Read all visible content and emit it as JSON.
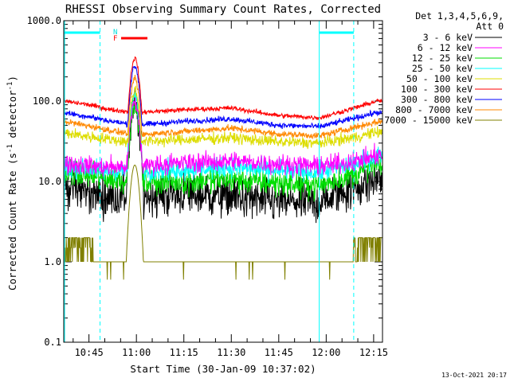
{
  "chart_data": {
    "type": "line",
    "title": "RHESSI Observing Summary Count Rates, Corrected",
    "xlabel": "Start Time (30-Jan-09 10:37:02)",
    "ylabel_main": "Corrected Count Rate (s",
    "ylabel_sup1": "-1",
    "ylabel_mid": " detector",
    "ylabel_sup2": "-1",
    "ylabel_end": ")",
    "yscale": "log",
    "ylim": [
      0.1,
      1000
    ],
    "xlim_minutes": [
      37.03,
      137.8
    ],
    "x_ticks": [
      "10:45",
      "11:00",
      "11:15",
      "11:30",
      "11:45",
      "12:00",
      "12:15"
    ],
    "y_ticks": [
      "1000.0",
      "100.0",
      "10.0",
      "1.0",
      "0.1"
    ],
    "legend": {
      "header": [
        "Det 1,3,4,5,6,9,",
        "Att 0"
      ],
      "entries": [
        {
          "label": "3 - 6 keV",
          "color": "#000000"
        },
        {
          "label": "6 - 12 keV",
          "color": "#ff00ff"
        },
        {
          "label": "12 - 25 keV",
          "color": "#00dd00"
        },
        {
          "label": "25 - 50 keV",
          "color": "#00ffff"
        },
        {
          "label": "50 - 100 keV",
          "color": "#dddd00"
        },
        {
          "label": "100 - 300 keV",
          "color": "#ff0000"
        },
        {
          "label": "300 - 800 keV",
          "color": "#0000ff"
        },
        {
          "label": "800 - 7000 keV",
          "color": "#ff8800"
        },
        {
          "label": "7000 - 15000 keV",
          "color": "#808000"
        }
      ]
    },
    "flags": {
      "N": "N",
      "F": "F"
    },
    "series": [
      {
        "name": "3 - 6 keV",
        "color": "#000000",
        "base": 6.5,
        "peak": 80,
        "noise": 0.13,
        "trend": [
          [
            37,
            9
          ],
          [
            42,
            8
          ],
          [
            50,
            6.5
          ],
          [
            58,
            6.5
          ],
          [
            75,
            7
          ],
          [
            90,
            6.5
          ],
          [
            105,
            5.5
          ],
          [
            118,
            5.5
          ],
          [
            125,
            7.5
          ],
          [
            132,
            9
          ],
          [
            136,
            11
          ]
        ]
      },
      {
        "name": "6 - 12 keV",
        "color": "#ff00ff",
        "base": 17,
        "peak": 95,
        "noise": 0.06,
        "trend": [
          [
            37,
            17
          ],
          [
            50,
            15
          ],
          [
            58,
            15.5
          ],
          [
            75,
            17
          ],
          [
            90,
            18
          ],
          [
            105,
            16.5
          ],
          [
            118,
            15.5
          ],
          [
            130,
            18
          ],
          [
            136,
            21
          ]
        ]
      },
      {
        "name": "12 - 25 keV",
        "color": "#00dd00",
        "base": 11,
        "peak": 90,
        "noise": 0.08,
        "trend": [
          [
            37,
            13
          ],
          [
            50,
            11
          ],
          [
            58,
            10
          ],
          [
            75,
            10
          ],
          [
            90,
            10.5
          ],
          [
            105,
            9.5
          ],
          [
            118,
            9
          ],
          [
            128,
            12
          ],
          [
            136,
            16
          ]
        ]
      },
      {
        "name": "25 - 50 keV",
        "color": "#00ffff",
        "base": 14,
        "peak": 110,
        "noise": 0.06,
        "trend": [
          [
            37,
            15
          ],
          [
            50,
            13.5
          ],
          [
            58,
            13.5
          ],
          [
            75,
            14
          ],
          [
            90,
            15
          ],
          [
            105,
            13.5
          ],
          [
            118,
            13
          ],
          [
            130,
            17
          ],
          [
            136,
            21
          ]
        ]
      },
      {
        "name": "50 - 100 keV",
        "color": "#dddd00",
        "base": 36,
        "peak": 135,
        "noise": 0.035,
        "trend": [
          [
            37,
            40
          ],
          [
            50,
            34
          ],
          [
            58,
            31
          ],
          [
            75,
            33
          ],
          [
            90,
            35
          ],
          [
            105,
            31
          ],
          [
            118,
            30
          ],
          [
            130,
            36
          ],
          [
            136,
            41
          ]
        ]
      },
      {
        "name": "100 - 300 keV",
        "color": "#ff0000",
        "base": 90,
        "peak": 340,
        "noise": 0.015,
        "trend": [
          [
            37,
            100
          ],
          [
            45,
            90
          ],
          [
            52,
            78
          ],
          [
            60,
            72
          ],
          [
            75,
            78
          ],
          [
            90,
            82
          ],
          [
            105,
            66
          ],
          [
            118,
            62
          ],
          [
            128,
            80
          ],
          [
            136,
            100
          ]
        ]
      },
      {
        "name": "300 - 800 keV",
        "color": "#0000ff",
        "base": 65,
        "peak": 270,
        "noise": 0.018,
        "trend": [
          [
            37,
            72
          ],
          [
            45,
            64
          ],
          [
            52,
            56
          ],
          [
            60,
            50
          ],
          [
            75,
            56
          ],
          [
            90,
            60
          ],
          [
            105,
            50
          ],
          [
            118,
            48
          ],
          [
            128,
            60
          ],
          [
            136,
            72
          ]
        ]
      },
      {
        "name": "800 - 7000 keV",
        "color": "#ff8800",
        "base": 48,
        "peak": 190,
        "noise": 0.02,
        "trend": [
          [
            37,
            56
          ],
          [
            45,
            49
          ],
          [
            52,
            43
          ],
          [
            60,
            38
          ],
          [
            75,
            42
          ],
          [
            90,
            46
          ],
          [
            105,
            39
          ],
          [
            118,
            37
          ],
          [
            128,
            46
          ],
          [
            136,
            55
          ]
        ]
      },
      {
        "name": "7000 - 15000 keV",
        "color": "#808000",
        "peak": 16,
        "description": "background ~1.0 with occasional drops; 1-2 counts at start and end"
      }
    ],
    "flare_peak_time_minutes": 59.5
  },
  "footer": {
    "timestamp": "13-Oct-2021 20:17"
  }
}
